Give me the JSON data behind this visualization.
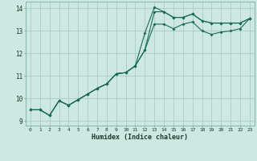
{
  "xlabel": "Humidex (Indice chaleur)",
  "background_color": "#cce8e0",
  "grid_color": "#aaccc4",
  "line_color": "#1a6a5a",
  "xlim": [
    -0.5,
    23.5
  ],
  "ylim": [
    8.8,
    14.3
  ],
  "xticks": [
    0,
    1,
    2,
    3,
    4,
    5,
    6,
    7,
    8,
    9,
    10,
    11,
    12,
    13,
    14,
    15,
    16,
    17,
    18,
    19,
    20,
    21,
    22,
    23
  ],
  "yticks": [
    9,
    10,
    11,
    12,
    13,
    14
  ],
  "line1_x": [
    0,
    1,
    2,
    3,
    4,
    5,
    6,
    7,
    8,
    9,
    10,
    11,
    12,
    13,
    14,
    15,
    16,
    17,
    18,
    19,
    20,
    21,
    22,
    23
  ],
  "line1_y": [
    9.5,
    9.5,
    9.25,
    9.9,
    9.7,
    9.95,
    10.2,
    10.45,
    10.65,
    11.1,
    11.15,
    11.45,
    12.9,
    14.05,
    13.85,
    13.6,
    13.6,
    13.75,
    13.45,
    13.35,
    13.35,
    13.35,
    13.35,
    13.55
  ],
  "line2_x": [
    0,
    1,
    2,
    3,
    4,
    5,
    6,
    7,
    8,
    9,
    10,
    11,
    12,
    13,
    14,
    15,
    16,
    17,
    18,
    19,
    20,
    21,
    22,
    23
  ],
  "line2_y": [
    9.5,
    9.5,
    9.25,
    9.9,
    9.7,
    9.95,
    10.2,
    10.45,
    10.65,
    11.1,
    11.15,
    11.45,
    12.15,
    13.85,
    13.85,
    13.6,
    13.6,
    13.75,
    13.45,
    13.35,
    13.35,
    13.35,
    13.35,
    13.55
  ],
  "line3_x": [
    0,
    1,
    2,
    3,
    4,
    5,
    6,
    7,
    8,
    9,
    10,
    11,
    12,
    13,
    14,
    15,
    16,
    17,
    18,
    19,
    20,
    21,
    22,
    23
  ],
  "line3_y": [
    9.5,
    9.5,
    9.25,
    9.9,
    9.7,
    9.95,
    10.2,
    10.45,
    10.65,
    11.1,
    11.15,
    11.45,
    12.15,
    13.3,
    13.3,
    13.1,
    13.3,
    13.4,
    13.0,
    12.85,
    12.95,
    13.0,
    13.1,
    13.55
  ]
}
